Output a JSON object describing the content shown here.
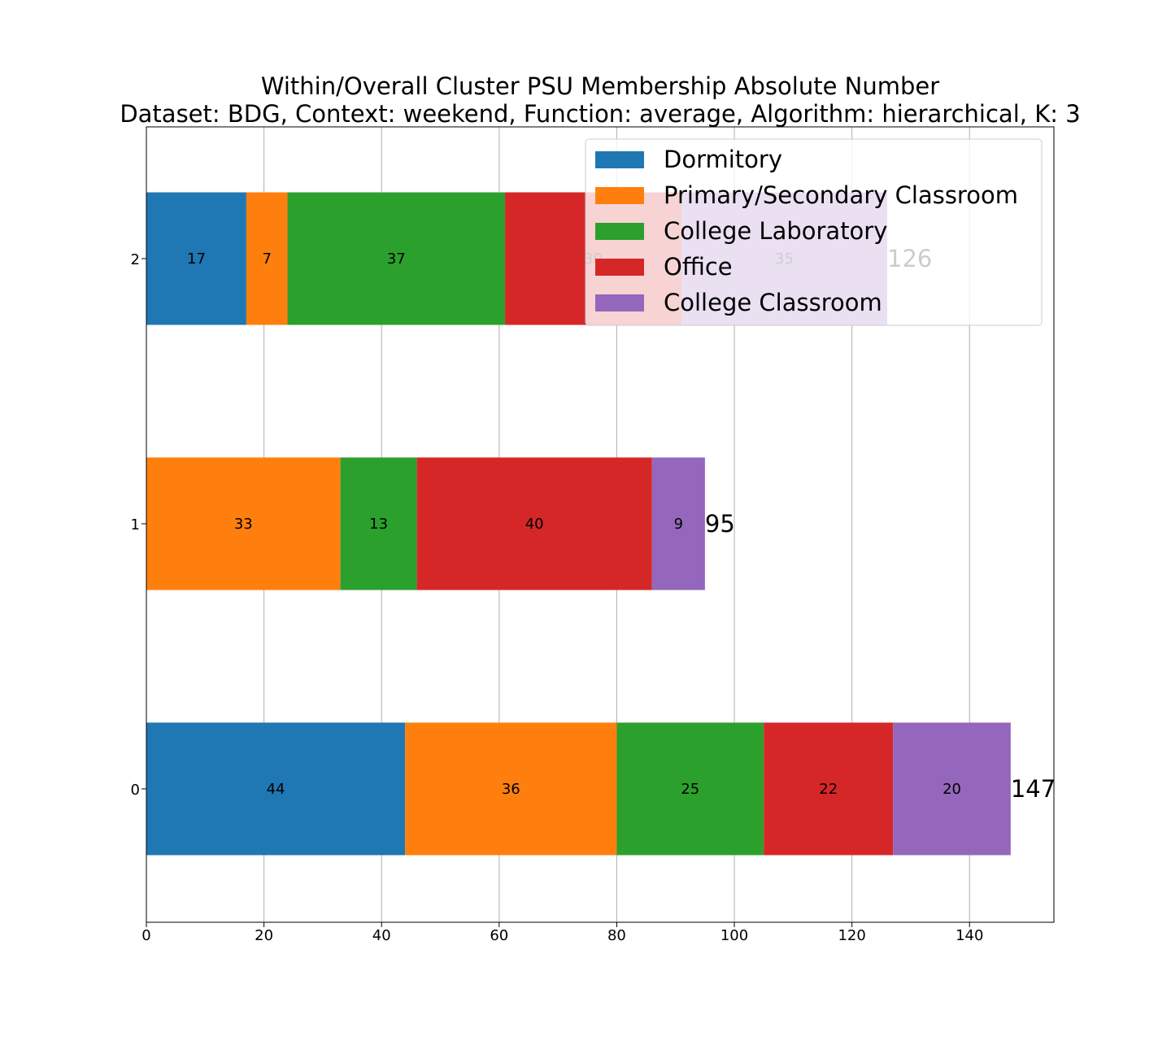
{
  "chart_data": {
    "type": "bar",
    "orientation": "horizontal",
    "stacked": true,
    "title": "Within/Overall Cluster PSU Membership Absolute Number",
    "subtitle": "Dataset: BDG, Context: weekend, Function: average, Algorithm: hierarchical, K: 3",
    "categories": [
      "0",
      "1",
      "2"
    ],
    "xlim": [
      0,
      154.35
    ],
    "xticks": [
      "0",
      "20",
      "40",
      "60",
      "80",
      "100",
      "120",
      "140"
    ],
    "grid": "vertical",
    "legend_position": "top-right",
    "series": [
      {
        "name": "Dormitory",
        "color": "#1f77b4",
        "values": [
          44,
          0,
          17
        ]
      },
      {
        "name": "Primary/Secondary Classroom",
        "color": "#ff7f0e",
        "values": [
          36,
          33,
          7
        ]
      },
      {
        "name": "College Laboratory",
        "color": "#2ca02c",
        "values": [
          25,
          13,
          37
        ]
      },
      {
        "name": "Office",
        "color": "#d62728",
        "values": [
          22,
          40,
          30
        ]
      },
      {
        "name": "College Classroom",
        "color": "#9467bd",
        "values": [
          20,
          9,
          35
        ]
      }
    ],
    "totals": [
      "147",
      "95",
      "126"
    ]
  }
}
